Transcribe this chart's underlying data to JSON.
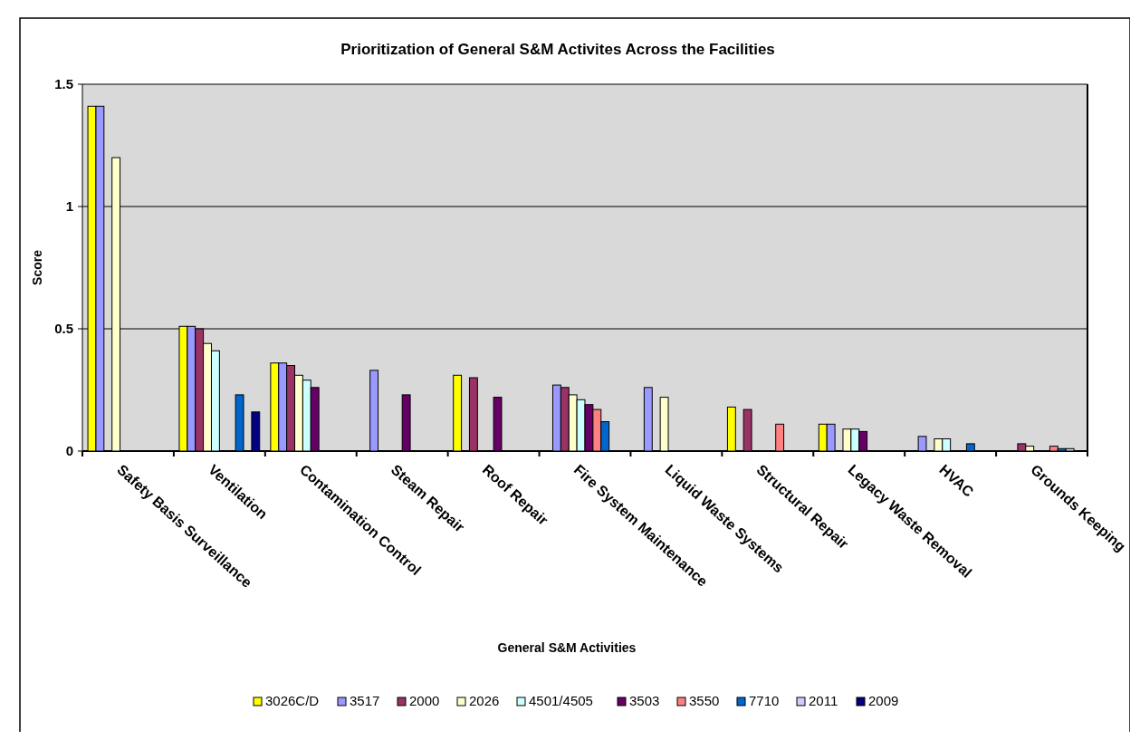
{
  "chart_data": {
    "type": "bar",
    "title": "Prioritization of General S&M Activites Across the Facilities",
    "xlabel": "General S&M Activities",
    "ylabel": "Score",
    "categories": [
      "Safety Basis Surveillance",
      "Ventilation",
      "Contamination Control",
      "Steam Repair",
      "Roof Repair",
      "Fire System Maintenance",
      "Liquid Waste Systems",
      "Structural Repair",
      "Legacy Waste Removal",
      "HVAC",
      "Grounds Keeping"
    ],
    "series": [
      {
        "name": "3026C/D",
        "color": "#ffff00",
        "values": [
          1.41,
          0.51,
          0.36,
          null,
          0.31,
          null,
          null,
          0.18,
          0.11,
          null,
          null
        ]
      },
      {
        "name": "3517",
        "color": "#9999ff",
        "values": [
          1.41,
          0.51,
          0.36,
          0.33,
          null,
          0.27,
          0.26,
          null,
          0.11,
          0.06,
          null
        ]
      },
      {
        "name": "2000",
        "color": "#993366",
        "values": [
          null,
          0.5,
          0.35,
          null,
          0.3,
          0.26,
          null,
          0.17,
          null,
          null,
          0.03
        ]
      },
      {
        "name": "2026",
        "color": "#ffffcc",
        "values": [
          1.2,
          0.44,
          0.31,
          null,
          null,
          0.23,
          0.22,
          null,
          0.09,
          0.05,
          0.02
        ]
      },
      {
        "name": "4501/4505",
        "color": "#ccffff",
        "values": [
          null,
          0.41,
          0.29,
          null,
          null,
          0.21,
          null,
          null,
          0.09,
          0.05,
          null
        ]
      },
      {
        "name": "3503",
        "color": "#660066",
        "values": [
          null,
          null,
          0.26,
          0.23,
          0.22,
          0.19,
          null,
          null,
          0.08,
          null,
          null
        ]
      },
      {
        "name": "3550",
        "color": "#ff8080",
        "values": [
          null,
          null,
          null,
          null,
          null,
          0.17,
          null,
          0.11,
          null,
          null,
          0.02
        ]
      },
      {
        "name": "7710",
        "color": "#0066cc",
        "values": [
          null,
          0.23,
          null,
          null,
          null,
          0.12,
          null,
          null,
          null,
          0.03,
          0.01
        ]
      },
      {
        "name": "2011",
        "color": "#ccccff",
        "values": [
          null,
          null,
          null,
          null,
          null,
          null,
          null,
          null,
          null,
          null,
          0.01
        ]
      },
      {
        "name": "2009",
        "color": "#000080",
        "values": [
          null,
          0.16,
          null,
          null,
          null,
          null,
          null,
          null,
          null,
          null,
          null
        ]
      }
    ],
    "ylim": [
      0,
      1.5
    ],
    "yticks": [
      0,
      0.5,
      1,
      1.5
    ],
    "grid": "y",
    "legend": "bottom"
  }
}
